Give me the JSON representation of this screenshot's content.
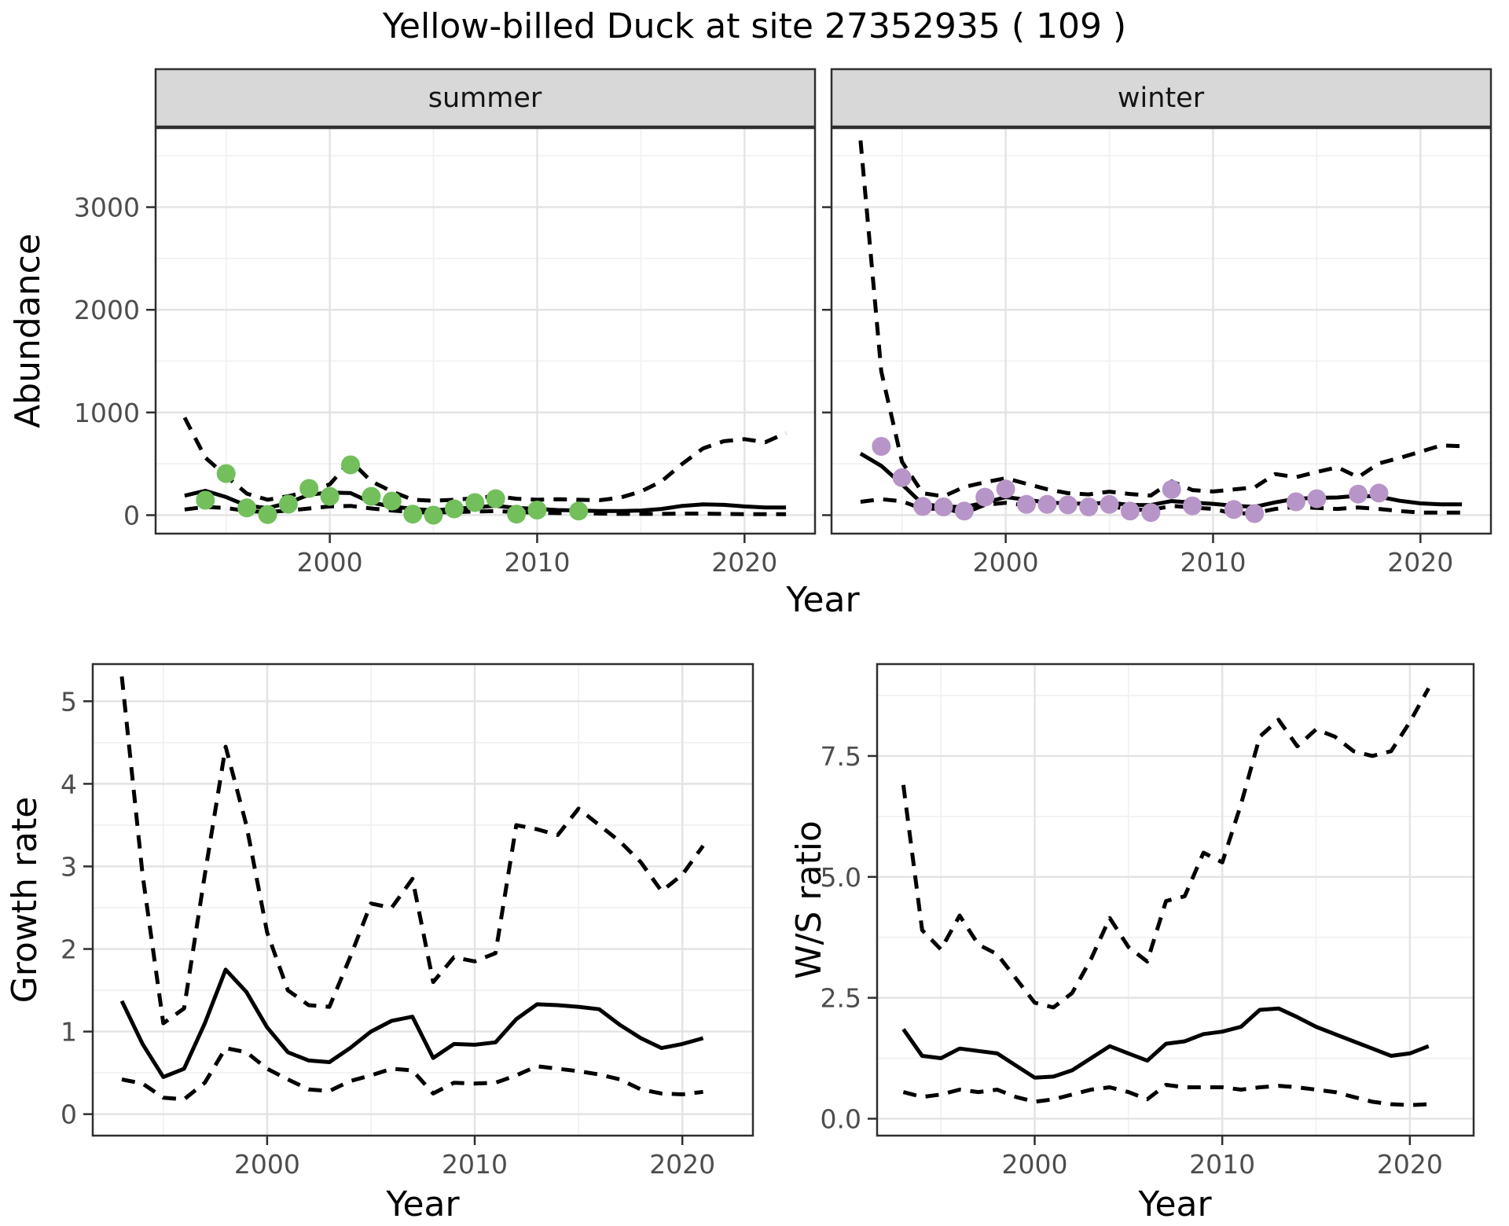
{
  "title": "Yellow-billed Duck at site 27352935 ( 109 )",
  "facets": [
    {
      "label": "summer"
    },
    {
      "label": "winter"
    }
  ],
  "axis_titles": {
    "abundance": "Abundance",
    "year": "Year",
    "growth_rate": "Growth rate",
    "ws_ratio": "W/S ratio"
  },
  "colors": {
    "summer_point": "#72bf5b",
    "winter_point": "#b795c8",
    "line": "#000000",
    "strip_bg": "#d8d8d8",
    "panel_border": "#2f2f2f",
    "grid_major": "#e3e3e3",
    "grid_minor": "#f1f1f1",
    "tick_label": "#4d4d4d"
  },
  "chart_data": [
    {
      "id": "abundance_summer",
      "type": "line",
      "title": "summer facet: modelled abundance with 95% CI and observed counts",
      "xlabel": "Year",
      "ylabel": "Abundance",
      "legend": false,
      "grid": true,
      "xlim": [
        1991.6,
        2023.4
      ],
      "ylim": [
        -180,
        3770
      ],
      "x_ticks": [
        2000,
        2010,
        2020
      ],
      "x_tick_labels": [
        "2000",
        "2010",
        "2020"
      ],
      "x_minor": [
        1995,
        2005,
        2015
      ],
      "y_ticks": [
        0,
        1000,
        2000,
        3000
      ],
      "y_tick_labels": [
        "0",
        "1000",
        "2000",
        "3000"
      ],
      "y_minor": [
        500,
        1500,
        2500,
        3500
      ],
      "year_start": 1993,
      "series": [
        {
          "name": "median",
          "dash": false,
          "values": [
            190,
            237,
            176,
            92,
            69,
            120,
            200,
            220,
            215,
            122,
            84,
            61,
            46,
            61,
            76,
            92,
            70,
            60,
            50,
            45,
            40,
            40,
            45,
            60,
            90,
            105,
            100,
            85,
            75,
            75
          ]
        },
        {
          "name": "upper-ci",
          "dash": true,
          "values": [
            950,
            560,
            380,
            210,
            150,
            185,
            230,
            300,
            530,
            330,
            230,
            150,
            140,
            150,
            165,
            185,
            160,
            150,
            155,
            150,
            145,
            170,
            230,
            330,
            500,
            650,
            720,
            740,
            710,
            800
          ]
        },
        {
          "name": "lower-ci",
          "dash": true,
          "values": [
            55,
            80,
            70,
            40,
            30,
            45,
            65,
            85,
            90,
            65,
            45,
            30,
            25,
            30,
            35,
            40,
            30,
            25,
            20,
            20,
            15,
            12,
            12,
            12,
            15,
            15,
            12,
            10,
            10,
            10
          ]
        }
      ],
      "points": {
        "name": "observed-count",
        "color_key": "summer_point",
        "years": [
          1994,
          1995,
          1996,
          1997,
          1998,
          1999,
          2000,
          2001,
          2002,
          2003,
          2004,
          2005,
          2006,
          2007,
          2008,
          2009,
          2010,
          2012
        ],
        "values": [
          145,
          405,
          70,
          5,
          107,
          260,
          183,
          490,
          183,
          137,
          10,
          0,
          61,
          122,
          160,
          10,
          50,
          40
        ]
      }
    },
    {
      "id": "abundance_winter",
      "type": "line",
      "title": "winter facet: modelled abundance with 95% CI and observed counts",
      "xlabel": "Year",
      "ylabel": "Abundance",
      "legend": false,
      "grid": true,
      "xlim": [
        1991.6,
        2023.4
      ],
      "ylim": [
        -180,
        3770
      ],
      "x_ticks": [
        2000,
        2010,
        2020
      ],
      "x_tick_labels": [
        "2000",
        "2010",
        "2020"
      ],
      "x_minor": [
        1995,
        2005,
        2015
      ],
      "y_ticks": [
        0,
        1000,
        2000,
        3000
      ],
      "y_tick_labels": [
        "0",
        "1000",
        "2000",
        "3000"
      ],
      "y_minor": [
        500,
        1500,
        2500,
        3500
      ],
      "year_start": 1993,
      "series": [
        {
          "name": "median",
          "dash": false,
          "values": [
            600,
            480,
            300,
            107,
            84,
            79,
            122,
            176,
            150,
            122,
            115,
            110,
            122,
            99,
            99,
            137,
            122,
            110,
            92,
            80,
            125,
            160,
            168,
            172,
            190,
            180,
            140,
            115,
            105,
            105
          ]
        },
        {
          "name": "upper-ci",
          "dash": true,
          "values": [
            3650,
            1400,
            520,
            214,
            183,
            275,
            321,
            360,
            305,
            252,
            214,
            202,
            229,
            206,
            191,
            328,
            244,
            230,
            250,
            270,
            400,
            370,
            420,
            466,
            370,
            504,
            557,
            618,
            680,
            672
          ]
        },
        {
          "name": "lower-ci",
          "dash": true,
          "values": [
            130,
            155,
            135,
            60,
            65,
            20,
            100,
            120,
            95,
            80,
            75,
            70,
            90,
            55,
            50,
            90,
            75,
            60,
            15,
            20,
            60,
            80,
            70,
            60,
            75,
            60,
            40,
            25,
            25,
            25
          ]
        }
      ],
      "points": {
        "name": "observed-count",
        "color_key": "winter_point",
        "years": [
          1994,
          1995,
          1996,
          1997,
          1998,
          1999,
          2000,
          2001,
          2002,
          2003,
          2004,
          2005,
          2006,
          2007,
          2008,
          2009,
          2011,
          2012,
          2014,
          2015,
          2017,
          2018
        ],
        "values": [
          670,
          365,
          85,
          80,
          40,
          175,
          255,
          105,
          105,
          100,
          80,
          105,
          40,
          25,
          250,
          90,
          55,
          15,
          130,
          160,
          205,
          215
        ]
      }
    },
    {
      "id": "growth_rate",
      "type": "line",
      "title": "annual growth rate with 95% CI",
      "xlabel": "Year",
      "ylabel": "Growth rate",
      "legend": false,
      "grid": true,
      "xlim": [
        1991.6,
        2023.4
      ],
      "ylim": [
        -0.26,
        5.45
      ],
      "x_ticks": [
        2000,
        2010,
        2020
      ],
      "x_tick_labels": [
        "2000",
        "2010",
        "2020"
      ],
      "x_minor": [
        1995,
        2005,
        2015
      ],
      "y_ticks": [
        0,
        1,
        2,
        3,
        4,
        5
      ],
      "y_tick_labels": [
        "0",
        "1",
        "2",
        "3",
        "4",
        "5"
      ],
      "y_minor": [
        0.5,
        1.5,
        2.5,
        3.5,
        4.5
      ],
      "year_start": 1993,
      "series": [
        {
          "name": "median",
          "dash": false,
          "values": [
            1.37,
            0.85,
            0.45,
            0.55,
            1.1,
            1.75,
            1.48,
            1.05,
            0.75,
            0.65,
            0.63,
            0.8,
            1.0,
            1.13,
            1.18,
            0.68,
            0.85,
            0.84,
            0.87,
            1.15,
            1.33,
            1.32,
            1.3,
            1.27,
            1.08,
            0.92,
            0.8,
            0.85,
            0.92
          ]
        },
        {
          "name": "upper-ci",
          "dash": true,
          "values": [
            5.3,
            2.9,
            1.1,
            1.28,
            2.9,
            4.45,
            3.5,
            2.2,
            1.5,
            1.32,
            1.3,
            1.9,
            2.55,
            2.5,
            2.85,
            1.6,
            1.9,
            1.85,
            1.95,
            3.5,
            3.45,
            3.38,
            3.7,
            3.5,
            3.3,
            3.05,
            2.7,
            2.9,
            3.25
          ]
        },
        {
          "name": "lower-ci",
          "dash": true,
          "values": [
            0.42,
            0.37,
            0.2,
            0.18,
            0.38,
            0.8,
            0.75,
            0.55,
            0.42,
            0.3,
            0.28,
            0.4,
            0.47,
            0.55,
            0.53,
            0.25,
            0.38,
            0.37,
            0.38,
            0.47,
            0.58,
            0.55,
            0.52,
            0.48,
            0.42,
            0.3,
            0.25,
            0.24,
            0.27
          ]
        }
      ],
      "points": null
    },
    {
      "id": "ws_ratio",
      "type": "line",
      "title": "winter/summer ratio with 95% CI",
      "xlabel": "Year",
      "ylabel": "W/S ratio",
      "legend": false,
      "grid": true,
      "xlim": [
        1991.6,
        2023.4
      ],
      "ylim": [
        -0.35,
        9.4
      ],
      "x_ticks": [
        2000,
        2010,
        2020
      ],
      "x_tick_labels": [
        "2000",
        "2010",
        "2020"
      ],
      "x_minor": [
        1995,
        2005,
        2015
      ],
      "y_ticks": [
        0,
        2.5,
        5,
        7.5
      ],
      "y_tick_labels": [
        "0.0",
        "2.5",
        "5.0",
        "7.5"
      ],
      "y_minor": [
        1.25,
        3.75,
        6.25,
        8.75
      ],
      "year_start": 1993,
      "series": [
        {
          "name": "median",
          "dash": false,
          "values": [
            1.85,
            1.3,
            1.25,
            1.45,
            1.4,
            1.35,
            1.1,
            0.85,
            0.87,
            1.0,
            1.25,
            1.5,
            1.35,
            1.2,
            1.55,
            1.6,
            1.75,
            1.8,
            1.9,
            2.25,
            2.28,
            2.1,
            1.9,
            1.75,
            1.6,
            1.45,
            1.3,
            1.35,
            1.5
          ]
        },
        {
          "name": "upper-ci",
          "dash": true,
          "values": [
            6.9,
            3.9,
            3.5,
            4.2,
            3.6,
            3.4,
            2.9,
            2.4,
            2.3,
            2.6,
            3.3,
            4.15,
            3.55,
            3.25,
            4.5,
            4.6,
            5.5,
            5.3,
            6.5,
            7.9,
            8.25,
            7.7,
            8.05,
            7.9,
            7.6,
            7.5,
            7.6,
            8.2,
            8.9
          ]
        },
        {
          "name": "lower-ci",
          "dash": true,
          "values": [
            0.55,
            0.45,
            0.5,
            0.6,
            0.55,
            0.6,
            0.45,
            0.35,
            0.4,
            0.5,
            0.6,
            0.65,
            0.55,
            0.4,
            0.7,
            0.65,
            0.65,
            0.65,
            0.6,
            0.65,
            0.68,
            0.65,
            0.6,
            0.55,
            0.45,
            0.35,
            0.3,
            0.28,
            0.3
          ]
        }
      ],
      "points": null
    }
  ]
}
